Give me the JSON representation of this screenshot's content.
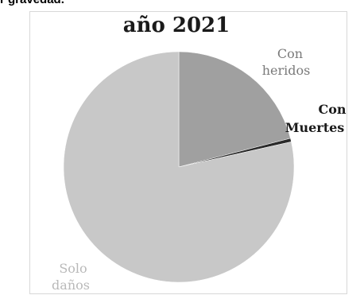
{
  "top_caption": "r gravedad.",
  "chart_data": {
    "type": "pie",
    "title": "año 2021",
    "slices": [
      {
        "label_line1": "Con",
        "label_line2": "heridos",
        "value": 0.21,
        "color": "#a0a0a0"
      },
      {
        "label_line1": "Con",
        "label_line2": "Muertes",
        "value": 0.005,
        "color": "#2a2a2a"
      },
      {
        "label_line1": "Solo",
        "label_line2": "daños",
        "value": 0.785,
        "color": "#c8c8c8"
      }
    ]
  }
}
